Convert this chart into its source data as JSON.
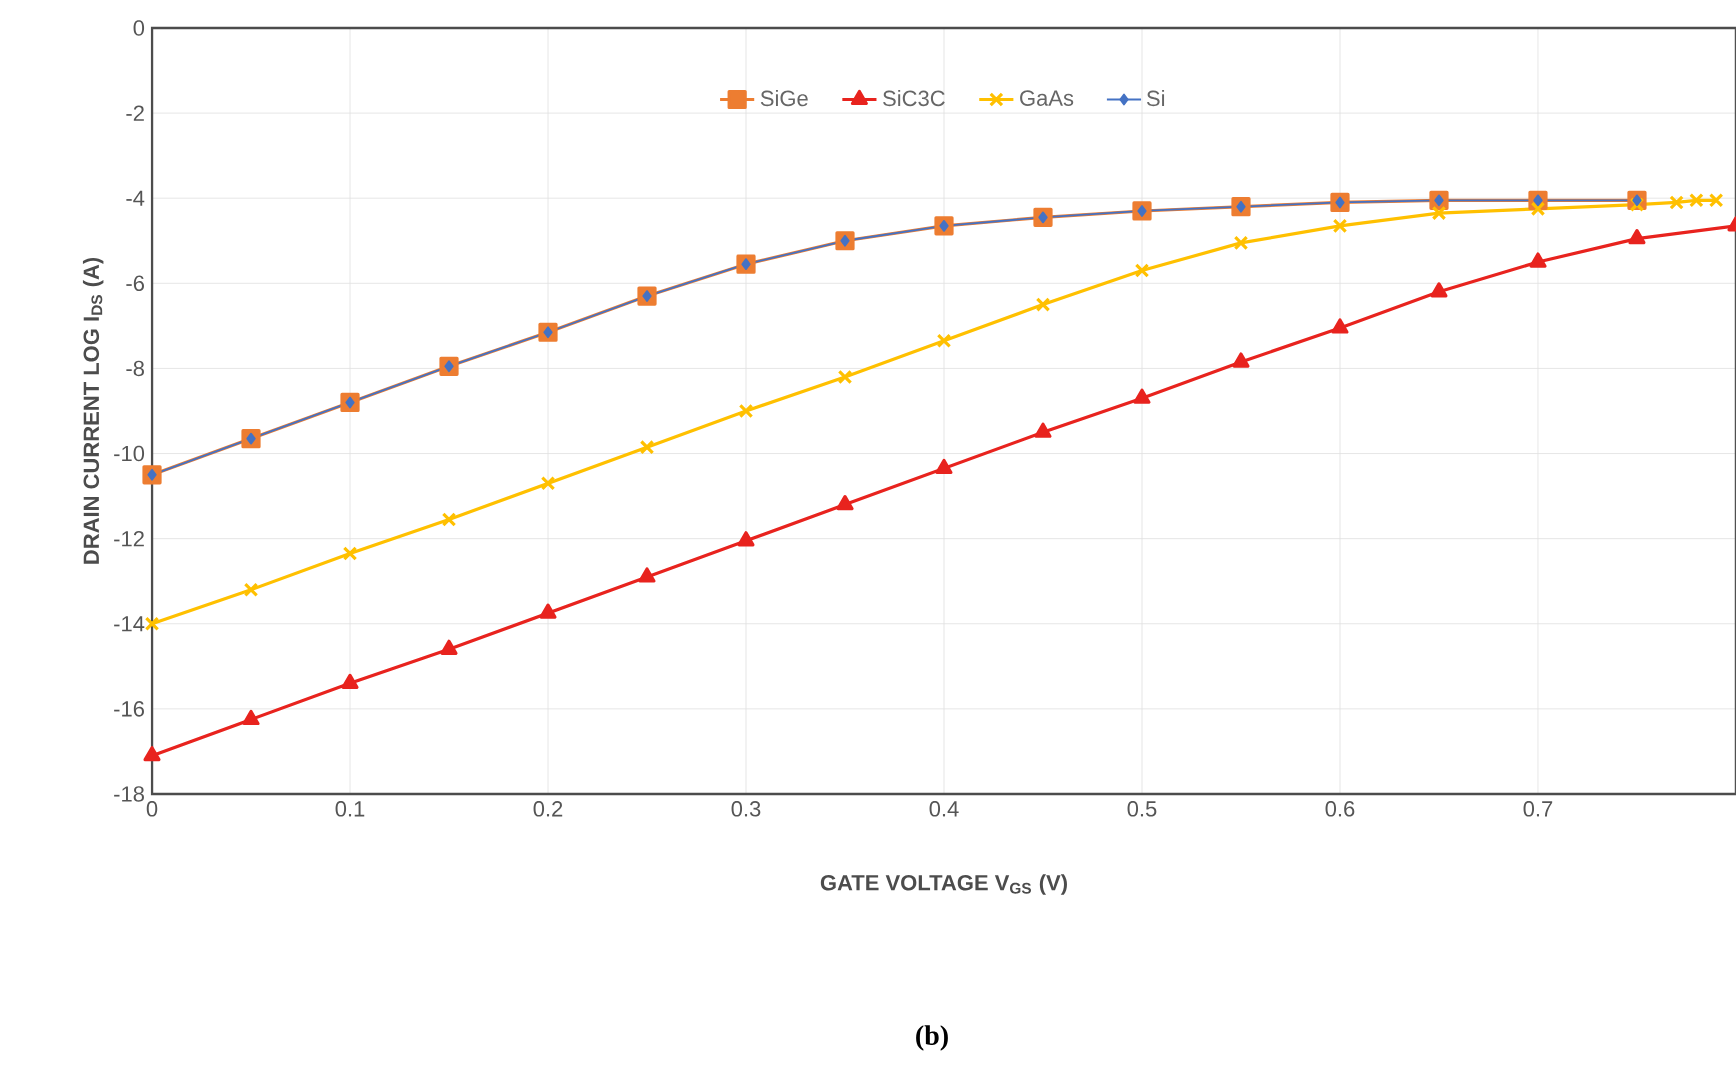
{
  "chart_data": {
    "type": "line",
    "xlabel": "GATE VOLTAGE V$_{GS}$ (V)",
    "ylabel": "DRAIN CURRENT LOG I$_{DS}$ (A)",
    "annotations": [
      "(b)"
    ],
    "x": [
      0,
      0.05,
      0.1,
      0.15,
      0.2,
      0.25,
      0.3,
      0.35,
      0.4,
      0.45,
      0.5,
      0.55,
      0.6,
      0.65,
      0.7,
      0.75
    ],
    "series": [
      {
        "name": "Si",
        "color": "#4472c4",
        "marker": "diamond",
        "values": [
          -10.5,
          -9.65,
          -8.8,
          -7.95,
          -7.15,
          -6.3,
          -5.55,
          -5.0,
          -4.65,
          -4.45,
          -4.3,
          -4.2,
          -4.1,
          -4.05,
          -4.05,
          -4.05
        ]
      },
      {
        "name": "SiGe",
        "color": "#ed7d31",
        "marker": "square",
        "values": [
          -10.5,
          -9.65,
          -8.8,
          -7.95,
          -7.15,
          -6.3,
          -5.55,
          -5.0,
          -4.65,
          -4.45,
          -4.3,
          -4.2,
          -4.1,
          -4.05,
          -4.05,
          -4.05
        ]
      },
      {
        "name": "SiC3C",
        "color": "#e8231e",
        "marker": "triangle",
        "x": [
          0,
          0.05,
          0.1,
          0.15,
          0.2,
          0.25,
          0.3,
          0.35,
          0.4,
          0.45,
          0.5,
          0.55,
          0.6,
          0.65,
          0.7,
          0.75,
          0.8
        ],
        "values": [
          -17.1,
          -16.25,
          -15.4,
          -14.6,
          -13.75,
          -12.9,
          -12.05,
          -11.2,
          -10.35,
          -9.5,
          -8.7,
          -7.85,
          -7.05,
          -6.2,
          -5.5,
          -4.95,
          -4.65
        ]
      },
      {
        "name": "GaAs",
        "color": "#ffc000",
        "marker": "cross",
        "x": [
          0,
          0.05,
          0.1,
          0.15,
          0.2,
          0.25,
          0.3,
          0.35,
          0.4,
          0.45,
          0.5,
          0.55,
          0.6,
          0.65,
          0.7,
          0.75,
          0.77,
          0.78,
          0.79
        ],
        "values": [
          -14.0,
          -13.2,
          -12.35,
          -11.55,
          -10.7,
          -9.85,
          -9.0,
          -8.2,
          -7.35,
          -6.5,
          -5.7,
          -5.05,
          -4.65,
          -4.35,
          -4.25,
          -4.15,
          -4.1,
          -4.05,
          -4.05
        ]
      }
    ],
    "xlim": [
      0,
      0.8
    ],
    "ylim": [
      -18,
      0
    ],
    "xticks": [
      0,
      0.1,
      0.2,
      0.3,
      0.4,
      0.5,
      0.6,
      0.7
    ],
    "yticks": [
      -18,
      -16,
      -14,
      -12,
      -10,
      -8,
      -6,
      -4,
      -2,
      0
    ],
    "grid": true,
    "legend": "top",
    "line_style": "solid"
  }
}
